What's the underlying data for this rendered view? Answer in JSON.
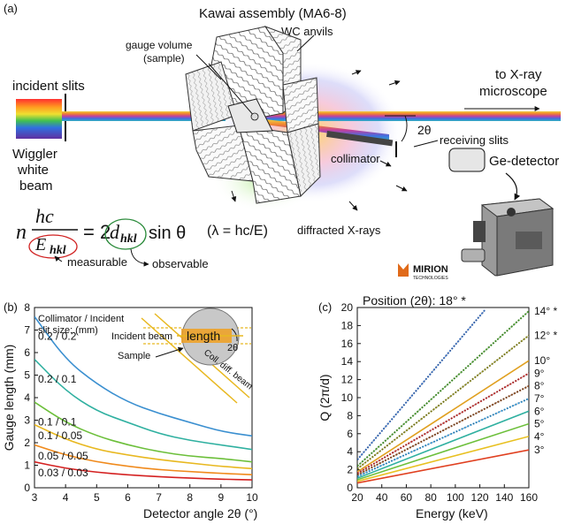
{
  "panel_a": {
    "label": "(a)",
    "title": "Kawai assembly (MA6-8)",
    "wc_anvils": "WC anvils",
    "gauge_volume_l1": "gauge volume",
    "gauge_volume_l2": "(sample)",
    "incident_slits": "incident slits",
    "wiggler_l1": "Wiggler",
    "wiggler_l2": "white",
    "wiggler_l3": "beam",
    "to_xray_l1": "to X-ray",
    "to_xray_l2": "microscope",
    "two_theta": "2θ",
    "receiving_slits": "receiving slits",
    "collimator": "collimator",
    "ge_detector": "Ge-detector",
    "diffracted": "diffracted X-rays",
    "measurable": "measurable",
    "observable": "observable",
    "eq_n": "n",
    "eq_hc": "hc",
    "eq_E": "E",
    "eq_hkl": "hkl",
    "eq_mid": "= 2",
    "eq_d": "d",
    "eq_sin": "sin θ",
    "eq_lambda": "(λ = hc/E)",
    "logo_text": "MIRION",
    "logo_sub": "TECHNOLOGIES"
  },
  "panel_b": {
    "label": "(b)",
    "legend_title_l1": "Collimator / Incident",
    "legend_title_l2": "slit size: (mm)",
    "inset_incident": "Incident beam",
    "inset_length": "length",
    "inset_sample": "Sample",
    "inset_two_theta": "2θ",
    "inset_coll": "Coll. diff. beam"
  },
  "panel_c": {
    "label": "(c)",
    "title": "Position (2θ): 18° *"
  },
  "chart_data": [
    {
      "type": "line",
      "xlabel": "Detector angle 2θ (°)",
      "ylabel": "Gauge length (mm)",
      "xlim": [
        3,
        10
      ],
      "ylim": [
        0,
        8
      ],
      "x_ticks": [
        "3",
        "4",
        "5",
        "6",
        "7",
        "8",
        "9",
        "10"
      ],
      "y_ticks": [
        "0",
        "1",
        "2",
        "3",
        "4",
        "5",
        "6",
        "7",
        "8"
      ],
      "series": [
        {
          "name": "0.2 / 0.2",
          "color": "#3a8fd0",
          "x": [
            3,
            4,
            5,
            6,
            7,
            8,
            9,
            10
          ],
          "values": [
            7.6,
            5.7,
            4.6,
            3.8,
            3.3,
            2.9,
            2.5,
            2.3
          ]
        },
        {
          "name": "0.2 / 0.1",
          "color": "#2fb0a0",
          "x": [
            3,
            4,
            5,
            6,
            7,
            8,
            9,
            10
          ],
          "values": [
            5.7,
            4.3,
            3.4,
            2.9,
            2.4,
            2.1,
            1.9,
            1.7
          ]
        },
        {
          "name": "0.1 / 0.1",
          "color": "#6cbf3a",
          "x": [
            3,
            4,
            5,
            6,
            7,
            8,
            9,
            10
          ],
          "values": [
            3.8,
            2.9,
            2.3,
            1.9,
            1.6,
            1.4,
            1.3,
            1.15
          ]
        },
        {
          "name": "0.1 / 0.05",
          "color": "#e8b820",
          "x": [
            3,
            4,
            5,
            6,
            7,
            8,
            9,
            10
          ],
          "values": [
            2.8,
            2.15,
            1.7,
            1.45,
            1.25,
            1.1,
            0.95,
            0.85
          ]
        },
        {
          "name": "0.05 / 0.05",
          "color": "#f08a1c",
          "x": [
            3,
            4,
            5,
            6,
            7,
            8,
            9,
            10
          ],
          "values": [
            1.9,
            1.45,
            1.15,
            0.95,
            0.8,
            0.72,
            0.64,
            0.58
          ]
        },
        {
          "name": "0.03 / 0.03",
          "color": "#d42020",
          "x": [
            3,
            4,
            5,
            6,
            7,
            8,
            9,
            10
          ],
          "values": [
            1.15,
            0.86,
            0.69,
            0.57,
            0.49,
            0.43,
            0.38,
            0.35
          ]
        }
      ]
    },
    {
      "type": "line",
      "title": "Position (2θ): 18° *",
      "xlabel": "Energy (keV)",
      "ylabel": "Q (2π/d)",
      "xlim": [
        20,
        160
      ],
      "ylim": [
        0,
        20
      ],
      "x_ticks": [
        "20",
        "40",
        "60",
        "80",
        "100",
        "120",
        "140",
        "160"
      ],
      "y_ticks": [
        "0",
        "2",
        "4",
        "6",
        "8",
        "10",
        "12",
        "14",
        "16",
        "18",
        "20"
      ],
      "series": [
        {
          "name": "18° *",
          "color": "#3a6fc0",
          "dotted": true,
          "x": [
            20,
            124
          ],
          "values": [
            3.1,
            19.7
          ]
        },
        {
          "name": "14° *",
          "color": "#4a9a30",
          "dotted": true,
          "x": [
            20,
            160
          ],
          "values": [
            2.4,
            19.6
          ]
        },
        {
          "name": "12° *",
          "color": "#8a8a20",
          "dotted": true,
          "x": [
            20,
            160
          ],
          "values": [
            2.1,
            16.9
          ]
        },
        {
          "name": "10°",
          "color": "#e0a020",
          "x": [
            20,
            160
          ],
          "values": [
            1.77,
            14.1
          ]
        },
        {
          "name": "9°",
          "color": "#c03030",
          "dotted": true,
          "x": [
            20,
            160
          ],
          "values": [
            1.6,
            12.7
          ]
        },
        {
          "name": "8°",
          "color": "#8a4a20",
          "dotted": true,
          "x": [
            20,
            160
          ],
          "values": [
            1.42,
            11.3
          ]
        },
        {
          "name": "7°",
          "color": "#3a9ad8",
          "dotted": true,
          "x": [
            20,
            160
          ],
          "values": [
            1.24,
            9.9
          ]
        },
        {
          "name": "6°",
          "color": "#2fb0a0",
          "x": [
            20,
            160
          ],
          "values": [
            1.06,
            8.5
          ]
        },
        {
          "name": "5°",
          "color": "#6cbf3a",
          "x": [
            20,
            160
          ],
          "values": [
            0.89,
            7.1
          ]
        },
        {
          "name": "4°",
          "color": "#e8c020",
          "x": [
            20,
            160
          ],
          "values": [
            0.71,
            5.7
          ]
        },
        {
          "name": "3°",
          "color": "#e04020",
          "x": [
            20,
            160
          ],
          "values": [
            0.53,
            4.2
          ]
        }
      ]
    }
  ]
}
